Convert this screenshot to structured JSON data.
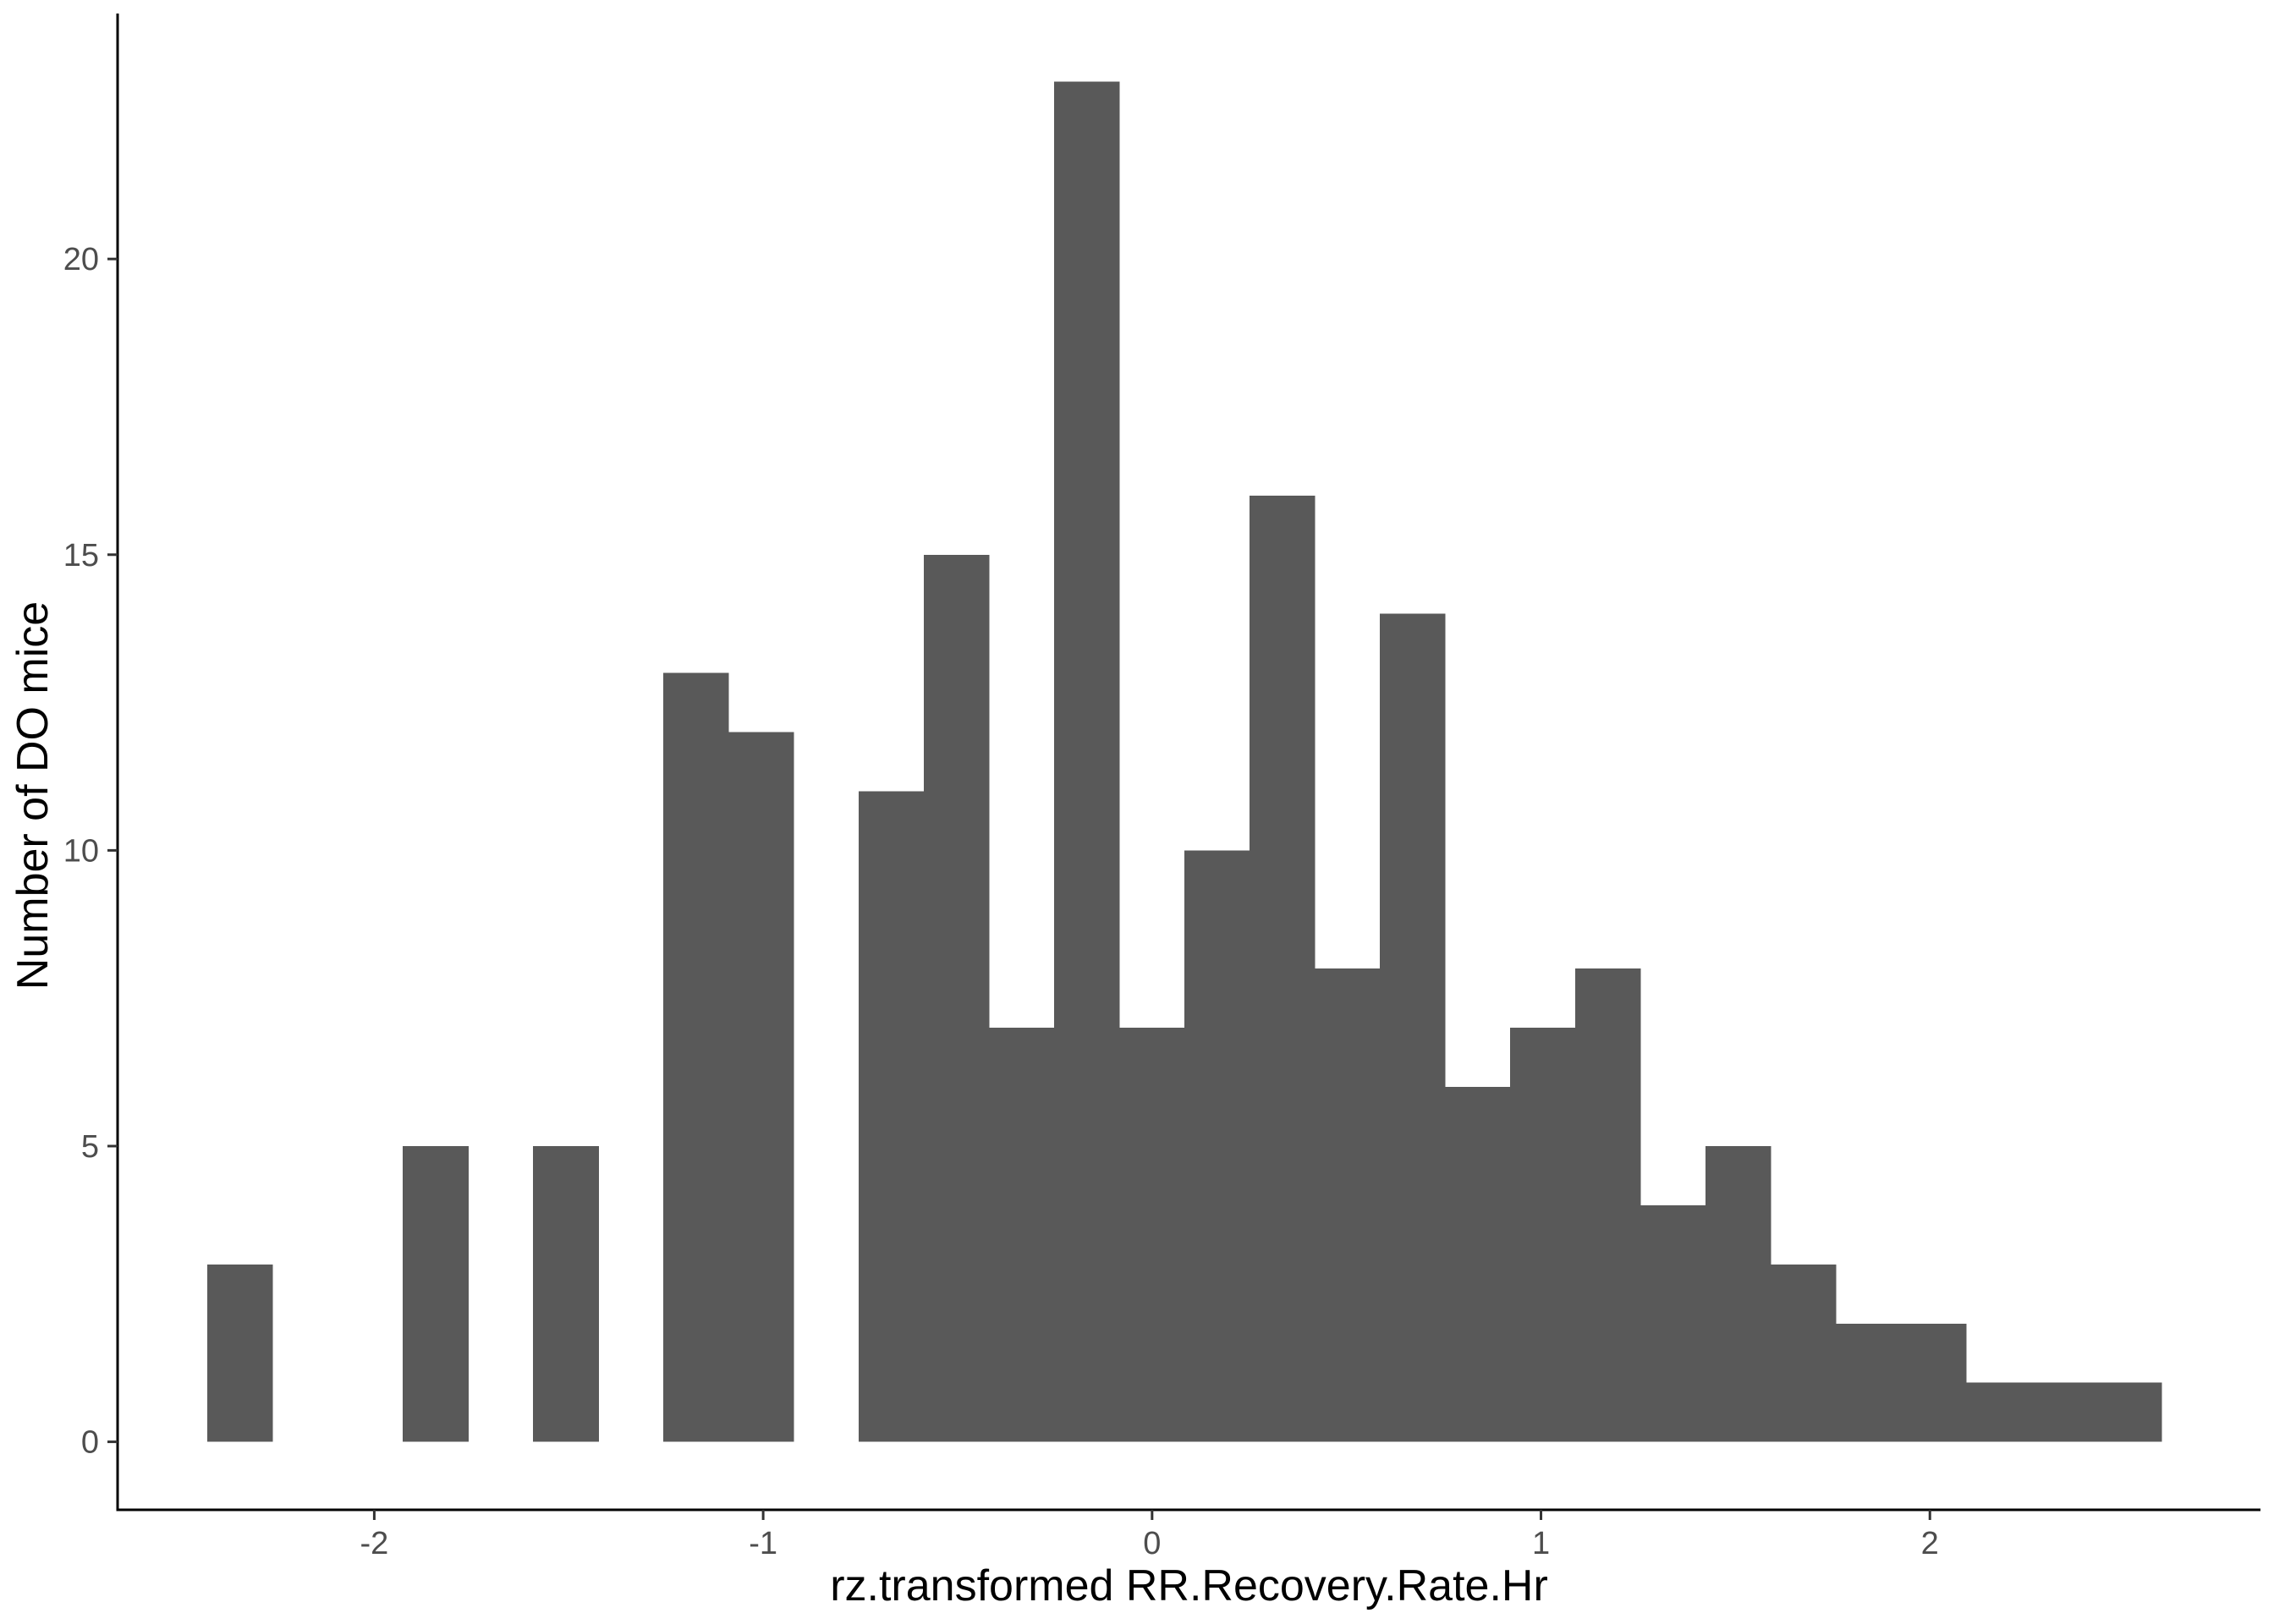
{
  "chart_data": {
    "type": "bar",
    "subtype": "histogram",
    "title": "",
    "xlabel": "rz.transformed RR.Recovery.Rate.Hr",
    "ylabel": "Number of DO mice",
    "xlim": [
      -2.66,
      2.85
    ],
    "ylim": [
      -1.15,
      24.15
    ],
    "bin_width": 0.1675,
    "bins": [
      {
        "x0": -2.429,
        "x1": -2.262,
        "count": 3
      },
      {
        "x0": -2.262,
        "x1": -2.094,
        "count": 0
      },
      {
        "x0": -2.094,
        "x1": -1.927,
        "count": 0
      },
      {
        "x0": -1.927,
        "x1": -1.759,
        "count": 5
      },
      {
        "x0": -1.759,
        "x1": -1.592,
        "count": 0
      },
      {
        "x0": -1.592,
        "x1": -1.424,
        "count": 5
      },
      {
        "x0": -1.424,
        "x1": -1.257,
        "count": 0
      },
      {
        "x0": -1.257,
        "x1": -1.09,
        "count": 13
      },
      {
        "x0": -1.09,
        "x1": -0.922,
        "count": 12
      },
      {
        "x0": -0.922,
        "x1": -0.755,
        "count": 0
      },
      {
        "x0": -0.755,
        "x1": -0.587,
        "count": 11
      },
      {
        "x0": -0.587,
        "x1": -0.42,
        "count": 15
      },
      {
        "x0": -0.42,
        "x1": -0.252,
        "count": 7
      },
      {
        "x0": -0.252,
        "x1": -0.085,
        "count": 23
      },
      {
        "x0": -0.085,
        "x1": 0.083,
        "count": 7
      },
      {
        "x0": 0.083,
        "x1": 0.25,
        "count": 10
      },
      {
        "x0": 0.25,
        "x1": 0.418,
        "count": 16
      },
      {
        "x0": 0.418,
        "x1": 0.585,
        "count": 8
      },
      {
        "x0": 0.585,
        "x1": 0.753,
        "count": 14
      },
      {
        "x0": 0.753,
        "x1": 0.92,
        "count": 6
      },
      {
        "x0": 0.92,
        "x1": 1.088,
        "count": 7
      },
      {
        "x0": 1.088,
        "x1": 1.255,
        "count": 8
      },
      {
        "x0": 1.255,
        "x1": 1.423,
        "count": 4
      },
      {
        "x0": 1.423,
        "x1": 1.59,
        "count": 5
      },
      {
        "x0": 1.59,
        "x1": 1.758,
        "count": 3
      },
      {
        "x0": 1.758,
        "x1": 1.925,
        "count": 2
      },
      {
        "x0": 1.925,
        "x1": 2.093,
        "count": 2
      },
      {
        "x0": 2.093,
        "x1": 2.26,
        "count": 1
      },
      {
        "x0": 2.26,
        "x1": 2.428,
        "count": 1
      },
      {
        "x0": 2.428,
        "x1": 2.595,
        "count": 1
      }
    ],
    "x_ticks": [
      {
        "value": -2,
        "label": "-2"
      },
      {
        "value": -1,
        "label": "-1"
      },
      {
        "value": 0,
        "label": "0"
      },
      {
        "value": 1,
        "label": "1"
      },
      {
        "value": 2,
        "label": "2"
      }
    ],
    "y_ticks": [
      {
        "value": 0,
        "label": "0"
      },
      {
        "value": 5,
        "label": "5"
      },
      {
        "value": 10,
        "label": "10"
      },
      {
        "value": 15,
        "label": "15"
      },
      {
        "value": 20,
        "label": "20"
      }
    ],
    "grid": false,
    "legend": "none",
    "bar_color": "#595959",
    "axis_color": "#000000",
    "tick_label_color": "#4d4d4d"
  }
}
